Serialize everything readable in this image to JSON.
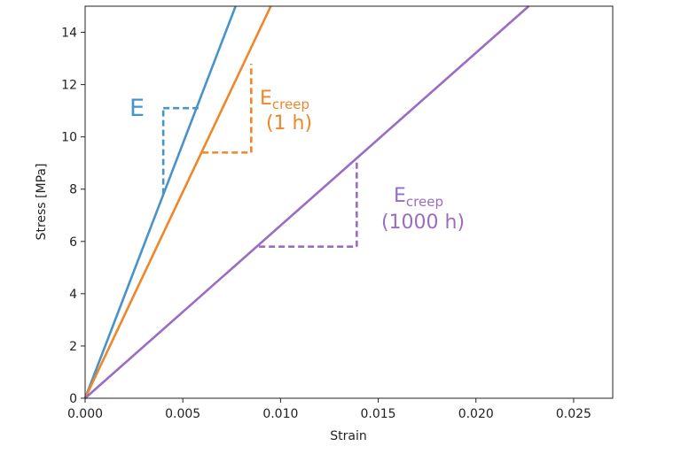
{
  "chart_data": {
    "type": "line",
    "xlabel": "Strain",
    "ylabel": "Stress [MPa]",
    "xlim": [
      0,
      0.027
    ],
    "ylim": [
      0,
      15
    ],
    "xticks": [
      "0.000",
      "0.005",
      "0.010",
      "0.015",
      "0.020",
      "0.025"
    ],
    "xtick_values": [
      0,
      0.005,
      0.01,
      0.015,
      0.02,
      0.025
    ],
    "yticks": [
      "0",
      "2",
      "4",
      "6",
      "8",
      "10",
      "12",
      "14"
    ],
    "ytick_values": [
      0,
      2,
      4,
      6,
      8,
      10,
      12,
      14
    ],
    "grid": false,
    "series": [
      {
        "color": "#4a93c6",
        "x": [
          0,
          0.0077
        ],
        "y": [
          0,
          15
        ]
      },
      {
        "color": "#f0862a",
        "x": [
          0,
          0.0095
        ],
        "y": [
          0,
          15
        ]
      },
      {
        "color": "#9b6cc4",
        "x": [
          0,
          0.0227
        ],
        "y": [
          0,
          15
        ]
      }
    ],
    "slope_triangles": [
      {
        "color": "#4a93c6",
        "h": [
          0.004,
          0.0058,
          11.1
        ],
        "v": [
          0.004,
          7.8,
          11.1
        ]
      },
      {
        "color": "#f0862a",
        "h": [
          0.006,
          0.0085,
          9.4
        ],
        "v": [
          0.0085,
          9.4,
          12.8
        ]
      },
      {
        "color": "#9b6cc4",
        "h": [
          0.0089,
          0.0139,
          5.8
        ],
        "v": [
          0.0139,
          5.8,
          9.2
        ]
      }
    ],
    "annotations": [
      {
        "id": "e",
        "text": "E",
        "color": "#4a93c6"
      },
      {
        "id": "ecreep-1h",
        "main": "E",
        "sub": "creep",
        "line2": "(1 h)",
        "color": "#f0862a"
      },
      {
        "id": "ecreep-1000h",
        "main": "E",
        "sub": "creep",
        "line2": "(1000 h)",
        "color": "#9b6cc4"
      }
    ]
  }
}
